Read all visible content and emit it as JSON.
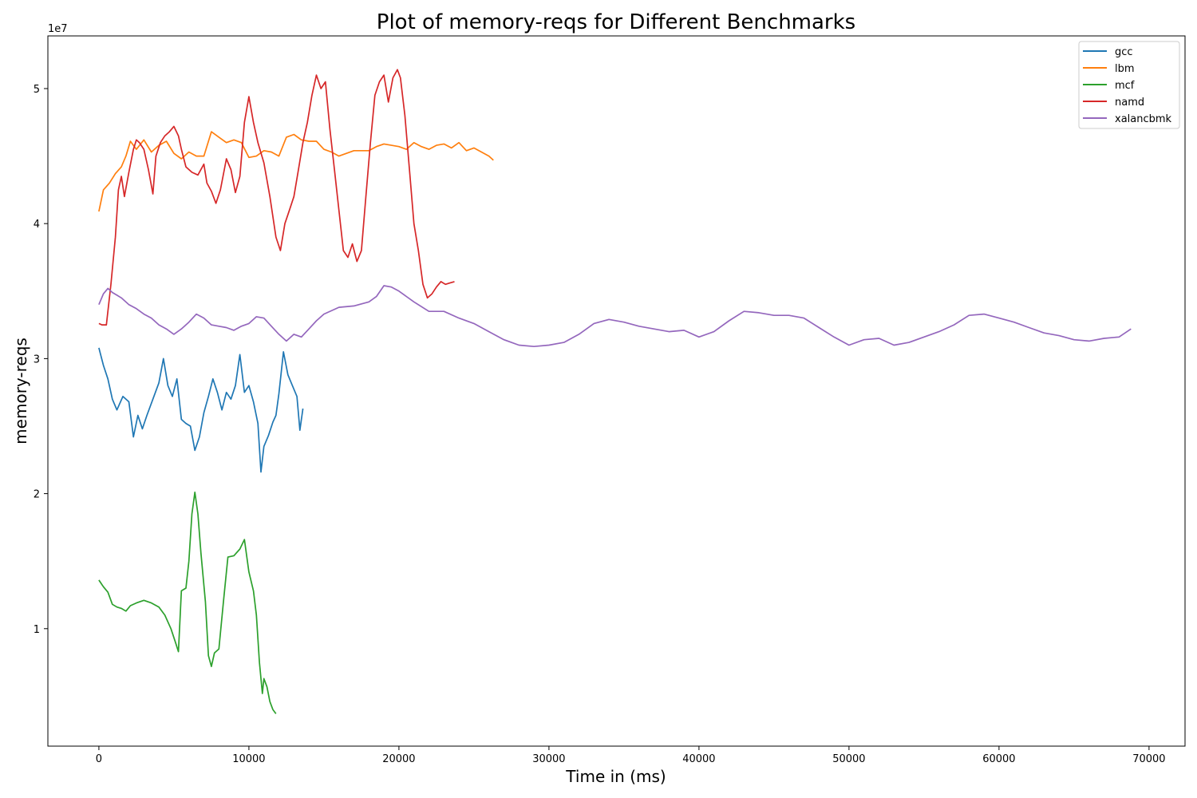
{
  "chart_data": {
    "type": "line",
    "title": "Plot of memory-reqs for Different Benchmarks",
    "xlabel": "Time in (ms)",
    "ylabel": "memory-reqs",
    "y_offset_label": "1e7",
    "xlim": [
      -3400,
      72400
    ],
    "ylim": [
      1300000,
      53900000
    ],
    "x_ticks": [
      0,
      10000,
      20000,
      30000,
      40000,
      50000,
      60000,
      70000
    ],
    "x_tick_labels": [
      "0",
      "10000",
      "20000",
      "30000",
      "40000",
      "50000",
      "60000",
      "70000"
    ],
    "y_ticks": [
      10000000,
      20000000,
      30000000,
      40000000,
      50000000
    ],
    "y_tick_labels": [
      "1",
      "2",
      "3",
      "4",
      "5"
    ],
    "grid": false,
    "legend_position": "top-right",
    "series": [
      {
        "name": "gcc",
        "color": "#1f77b4",
        "x": [
          0,
          300,
          600,
          900,
          1200,
          1600,
          2000,
          2300,
          2600,
          2900,
          3200,
          3600,
          4000,
          4300,
          4600,
          4900,
          5200,
          5500,
          5800,
          6100,
          6400,
          6700,
          7000,
          7300,
          7600,
          7900,
          8200,
          8500,
          8800,
          9100,
          9400,
          9700,
          10000,
          10300,
          10600,
          10800,
          11000,
          11300,
          11600,
          11800,
          12000,
          12300,
          12600,
          12900,
          13200,
          13400,
          13600
        ],
        "y": [
          30800000,
          29500000,
          28500000,
          27000000,
          26200000,
          27200000,
          26800000,
          24200000,
          25800000,
          24800000,
          25800000,
          27000000,
          28200000,
          30000000,
          28000000,
          27200000,
          28500000,
          25500000,
          25200000,
          25000000,
          23200000,
          24200000,
          26000000,
          27200000,
          28500000,
          27500000,
          26200000,
          27500000,
          27000000,
          28000000,
          30300000,
          27500000,
          28000000,
          26800000,
          25200000,
          21600000,
          23500000,
          24300000,
          25300000,
          25800000,
          27400000,
          30500000,
          28800000,
          28000000,
          27200000,
          24700000,
          26300000
        ]
      },
      {
        "name": "lbm",
        "color": "#ff7f0e",
        "x": [
          0,
          300,
          700,
          1100,
          1500,
          1800,
          2100,
          2500,
          3000,
          3500,
          4000,
          4500,
          5000,
          5500,
          6000,
          6500,
          7000,
          7500,
          8000,
          8500,
          9000,
          9500,
          10000,
          10500,
          11000,
          11500,
          12000,
          12500,
          13000,
          13500,
          14000,
          14500,
          15000,
          15500,
          16000,
          16500,
          17000,
          17500,
          18000,
          18500,
          19000,
          19500,
          20000,
          20500,
          21000,
          21500,
          22000,
          22500,
          23000,
          23500,
          24000,
          24500,
          25000,
          25500,
          26000,
          26300
        ],
        "y": [
          40900000,
          42500000,
          43000000,
          43700000,
          44200000,
          45000000,
          46100000,
          45500000,
          46200000,
          45300000,
          45800000,
          46100000,
          45200000,
          44800000,
          45300000,
          45000000,
          45000000,
          46800000,
          46400000,
          46000000,
          46200000,
          46000000,
          44900000,
          45000000,
          45400000,
          45300000,
          45000000,
          46400000,
          46600000,
          46200000,
          46100000,
          46100000,
          45500000,
          45300000,
          45000000,
          45200000,
          45400000,
          45400000,
          45400000,
          45700000,
          45900000,
          45800000,
          45700000,
          45500000,
          46000000,
          45700000,
          45500000,
          45800000,
          45900000,
          45600000,
          46000000,
          45400000,
          45600000,
          45300000,
          45000000,
          44700000
        ]
      },
      {
        "name": "mcf",
        "color": "#2ca02c",
        "x": [
          0,
          300,
          600,
          900,
          1200,
          1500,
          1800,
          2100,
          2500,
          3000,
          3500,
          4000,
          4400,
          4800,
          5100,
          5300,
          5500,
          5800,
          6000,
          6200,
          6400,
          6600,
          6800,
          7100,
          7300,
          7500,
          7700,
          8000,
          8300,
          8600,
          9000,
          9400,
          9700,
          10000,
          10300,
          10500,
          10700,
          10900,
          11000,
          11200,
          11400,
          11600,
          11800
        ],
        "y": [
          13600000,
          13100000,
          12700000,
          11800000,
          11600000,
          11500000,
          11300000,
          11700000,
          11900000,
          12100000,
          11900000,
          11600000,
          11000000,
          10000000,
          9000000,
          8300000,
          12800000,
          13000000,
          15000000,
          18500000,
          20100000,
          18500000,
          15600000,
          12000000,
          8000000,
          7200000,
          8200000,
          8500000,
          12000000,
          15300000,
          15400000,
          15900000,
          16600000,
          14200000,
          12800000,
          11000000,
          7500000,
          5200000,
          6300000,
          5700000,
          4600000,
          4000000,
          3700000
        ]
      },
      {
        "name": "namd",
        "color": "#d62728",
        "x": [
          0,
          200,
          500,
          800,
          1100,
          1300,
          1500,
          1700,
          2000,
          2300,
          2500,
          2700,
          3000,
          3300,
          3600,
          3800,
          4100,
          4400,
          4700,
          5000,
          5300,
          5500,
          5800,
          6200,
          6600,
          7000,
          7200,
          7500,
          7800,
          8100,
          8500,
          8800,
          9100,
          9400,
          9700,
          10000,
          10300,
          10600,
          11000,
          11400,
          11800,
          12100,
          12400,
          12700,
          13000,
          13300,
          13600,
          13900,
          14200,
          14500,
          14800,
          15100,
          15400,
          15700,
          16000,
          16300,
          16600,
          16900,
          17200,
          17500,
          17800,
          18100,
          18400,
          18700,
          19000,
          19300,
          19600,
          19900,
          20100,
          20400,
          20700,
          21000,
          21300,
          21600,
          21900,
          22200,
          22500,
          22800,
          23100,
          23400,
          23700
        ],
        "y": [
          32600000,
          32500000,
          32500000,
          35500000,
          39000000,
          42500000,
          43500000,
          42000000,
          43800000,
          45500000,
          46200000,
          46000000,
          45500000,
          44000000,
          42200000,
          45000000,
          46000000,
          46500000,
          46800000,
          47200000,
          46500000,
          45500000,
          44200000,
          43800000,
          43600000,
          44400000,
          43000000,
          42400000,
          41500000,
          42500000,
          44800000,
          44000000,
          42300000,
          43500000,
          47500000,
          49400000,
          47500000,
          46000000,
          44500000,
          42000000,
          39000000,
          38000000,
          40000000,
          41000000,
          42000000,
          44000000,
          46000000,
          47500000,
          49500000,
          51000000,
          50000000,
          50500000,
          47000000,
          44000000,
          41000000,
          38000000,
          37500000,
          38500000,
          37200000,
          38000000,
          42000000,
          46000000,
          49500000,
          50500000,
          51000000,
          49000000,
          50800000,
          51400000,
          50800000,
          48000000,
          44000000,
          40000000,
          38000000,
          35500000,
          34500000,
          34800000,
          35300000,
          35700000,
          35500000,
          35600000,
          35700000
        ]
      },
      {
        "name": "xalancbmk",
        "color": "#9467bd",
        "x": [
          0,
          300,
          600,
          900,
          1200,
          1500,
          2000,
          2500,
          3000,
          3500,
          4000,
          4500,
          5000,
          5500,
          6000,
          6500,
          7000,
          7500,
          8000,
          8500,
          9000,
          9500,
          10000,
          10500,
          11000,
          11500,
          12000,
          12500,
          13000,
          13500,
          14000,
          14500,
          15000,
          16000,
          17000,
          18000,
          18500,
          19000,
          19500,
          20000,
          21000,
          22000,
          23000,
          24000,
          25000,
          26000,
          27000,
          28000,
          29000,
          30000,
          31000,
          32000,
          33000,
          34000,
          35000,
          36000,
          37000,
          38000,
          39000,
          40000,
          41000,
          42000,
          43000,
          44000,
          45000,
          46000,
          47000,
          48000,
          49000,
          50000,
          51000,
          52000,
          53000,
          54000,
          55000,
          56000,
          57000,
          58000,
          59000,
          60000,
          61000,
          62000,
          63000,
          64000,
          65000,
          66000,
          67000,
          68000,
          68800
        ],
        "y": [
          34000000,
          34800000,
          35200000,
          34900000,
          34700000,
          34500000,
          34000000,
          33700000,
          33300000,
          33000000,
          32500000,
          32200000,
          31800000,
          32200000,
          32700000,
          33300000,
          33000000,
          32500000,
          32400000,
          32300000,
          32100000,
          32400000,
          32600000,
          33100000,
          33000000,
          32400000,
          31800000,
          31300000,
          31800000,
          31600000,
          32200000,
          32800000,
          33300000,
          33800000,
          33900000,
          34200000,
          34600000,
          35400000,
          35300000,
          35000000,
          34200000,
          33500000,
          33500000,
          33000000,
          32600000,
          32000000,
          31400000,
          31000000,
          30900000,
          31000000,
          31200000,
          31800000,
          32600000,
          32900000,
          32700000,
          32400000,
          32200000,
          32000000,
          32100000,
          31600000,
          32000000,
          32800000,
          33500000,
          33400000,
          33200000,
          33200000,
          33000000,
          32300000,
          31600000,
          31000000,
          31400000,
          31500000,
          31000000,
          31200000,
          31600000,
          32000000,
          32500000,
          33200000,
          33300000,
          33000000,
          32700000,
          32300000,
          31900000,
          31700000,
          31400000,
          31300000,
          31500000,
          31600000,
          32200000
        ]
      }
    ]
  }
}
